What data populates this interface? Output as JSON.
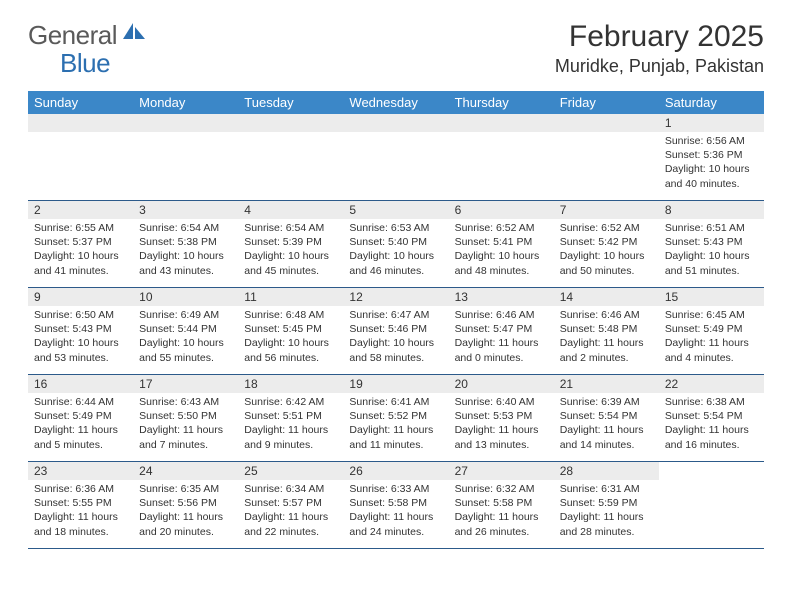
{
  "logo": {
    "general": "General",
    "blue": "Blue"
  },
  "title": {
    "month_year": "February 2025",
    "location": "Muridke, Punjab, Pakistan"
  },
  "colors": {
    "header_bg": "#3b87c8",
    "row_border": "#2c5a8a",
    "num_bar_bg": "#ececec",
    "text": "#333333"
  },
  "day_headers": [
    "Sunday",
    "Monday",
    "Tuesday",
    "Wednesday",
    "Thursday",
    "Friday",
    "Saturday"
  ],
  "weeks": [
    [
      {
        "empty": true
      },
      {
        "empty": true
      },
      {
        "empty": true
      },
      {
        "empty": true
      },
      {
        "empty": true
      },
      {
        "empty": true
      },
      {
        "num": "1",
        "sunrise": "Sunrise: 6:56 AM",
        "sunset": "Sunset: 5:36 PM",
        "daylight1": "Daylight: 10 hours",
        "daylight2": "and 40 minutes."
      }
    ],
    [
      {
        "num": "2",
        "sunrise": "Sunrise: 6:55 AM",
        "sunset": "Sunset: 5:37 PM",
        "daylight1": "Daylight: 10 hours",
        "daylight2": "and 41 minutes."
      },
      {
        "num": "3",
        "sunrise": "Sunrise: 6:54 AM",
        "sunset": "Sunset: 5:38 PM",
        "daylight1": "Daylight: 10 hours",
        "daylight2": "and 43 minutes."
      },
      {
        "num": "4",
        "sunrise": "Sunrise: 6:54 AM",
        "sunset": "Sunset: 5:39 PM",
        "daylight1": "Daylight: 10 hours",
        "daylight2": "and 45 minutes."
      },
      {
        "num": "5",
        "sunrise": "Sunrise: 6:53 AM",
        "sunset": "Sunset: 5:40 PM",
        "daylight1": "Daylight: 10 hours",
        "daylight2": "and 46 minutes."
      },
      {
        "num": "6",
        "sunrise": "Sunrise: 6:52 AM",
        "sunset": "Sunset: 5:41 PM",
        "daylight1": "Daylight: 10 hours",
        "daylight2": "and 48 minutes."
      },
      {
        "num": "7",
        "sunrise": "Sunrise: 6:52 AM",
        "sunset": "Sunset: 5:42 PM",
        "daylight1": "Daylight: 10 hours",
        "daylight2": "and 50 minutes."
      },
      {
        "num": "8",
        "sunrise": "Sunrise: 6:51 AM",
        "sunset": "Sunset: 5:43 PM",
        "daylight1": "Daylight: 10 hours",
        "daylight2": "and 51 minutes."
      }
    ],
    [
      {
        "num": "9",
        "sunrise": "Sunrise: 6:50 AM",
        "sunset": "Sunset: 5:43 PM",
        "daylight1": "Daylight: 10 hours",
        "daylight2": "and 53 minutes."
      },
      {
        "num": "10",
        "sunrise": "Sunrise: 6:49 AM",
        "sunset": "Sunset: 5:44 PM",
        "daylight1": "Daylight: 10 hours",
        "daylight2": "and 55 minutes."
      },
      {
        "num": "11",
        "sunrise": "Sunrise: 6:48 AM",
        "sunset": "Sunset: 5:45 PM",
        "daylight1": "Daylight: 10 hours",
        "daylight2": "and 56 minutes."
      },
      {
        "num": "12",
        "sunrise": "Sunrise: 6:47 AM",
        "sunset": "Sunset: 5:46 PM",
        "daylight1": "Daylight: 10 hours",
        "daylight2": "and 58 minutes."
      },
      {
        "num": "13",
        "sunrise": "Sunrise: 6:46 AM",
        "sunset": "Sunset: 5:47 PM",
        "daylight1": "Daylight: 11 hours",
        "daylight2": "and 0 minutes."
      },
      {
        "num": "14",
        "sunrise": "Sunrise: 6:46 AM",
        "sunset": "Sunset: 5:48 PM",
        "daylight1": "Daylight: 11 hours",
        "daylight2": "and 2 minutes."
      },
      {
        "num": "15",
        "sunrise": "Sunrise: 6:45 AM",
        "sunset": "Sunset: 5:49 PM",
        "daylight1": "Daylight: 11 hours",
        "daylight2": "and 4 minutes."
      }
    ],
    [
      {
        "num": "16",
        "sunrise": "Sunrise: 6:44 AM",
        "sunset": "Sunset: 5:49 PM",
        "daylight1": "Daylight: 11 hours",
        "daylight2": "and 5 minutes."
      },
      {
        "num": "17",
        "sunrise": "Sunrise: 6:43 AM",
        "sunset": "Sunset: 5:50 PM",
        "daylight1": "Daylight: 11 hours",
        "daylight2": "and 7 minutes."
      },
      {
        "num": "18",
        "sunrise": "Sunrise: 6:42 AM",
        "sunset": "Sunset: 5:51 PM",
        "daylight1": "Daylight: 11 hours",
        "daylight2": "and 9 minutes."
      },
      {
        "num": "19",
        "sunrise": "Sunrise: 6:41 AM",
        "sunset": "Sunset: 5:52 PM",
        "daylight1": "Daylight: 11 hours",
        "daylight2": "and 11 minutes."
      },
      {
        "num": "20",
        "sunrise": "Sunrise: 6:40 AM",
        "sunset": "Sunset: 5:53 PM",
        "daylight1": "Daylight: 11 hours",
        "daylight2": "and 13 minutes."
      },
      {
        "num": "21",
        "sunrise": "Sunrise: 6:39 AM",
        "sunset": "Sunset: 5:54 PM",
        "daylight1": "Daylight: 11 hours",
        "daylight2": "and 14 minutes."
      },
      {
        "num": "22",
        "sunrise": "Sunrise: 6:38 AM",
        "sunset": "Sunset: 5:54 PM",
        "daylight1": "Daylight: 11 hours",
        "daylight2": "and 16 minutes."
      }
    ],
    [
      {
        "num": "23",
        "sunrise": "Sunrise: 6:36 AM",
        "sunset": "Sunset: 5:55 PM",
        "daylight1": "Daylight: 11 hours",
        "daylight2": "and 18 minutes."
      },
      {
        "num": "24",
        "sunrise": "Sunrise: 6:35 AM",
        "sunset": "Sunset: 5:56 PM",
        "daylight1": "Daylight: 11 hours",
        "daylight2": "and 20 minutes."
      },
      {
        "num": "25",
        "sunrise": "Sunrise: 6:34 AM",
        "sunset": "Sunset: 5:57 PM",
        "daylight1": "Daylight: 11 hours",
        "daylight2": "and 22 minutes."
      },
      {
        "num": "26",
        "sunrise": "Sunrise: 6:33 AM",
        "sunset": "Sunset: 5:58 PM",
        "daylight1": "Daylight: 11 hours",
        "daylight2": "and 24 minutes."
      },
      {
        "num": "27",
        "sunrise": "Sunrise: 6:32 AM",
        "sunset": "Sunset: 5:58 PM",
        "daylight1": "Daylight: 11 hours",
        "daylight2": "and 26 minutes."
      },
      {
        "num": "28",
        "sunrise": "Sunrise: 6:31 AM",
        "sunset": "Sunset: 5:59 PM",
        "daylight1": "Daylight: 11 hours",
        "daylight2": "and 28 minutes."
      },
      {
        "empty": true,
        "no_bar": true
      }
    ]
  ]
}
